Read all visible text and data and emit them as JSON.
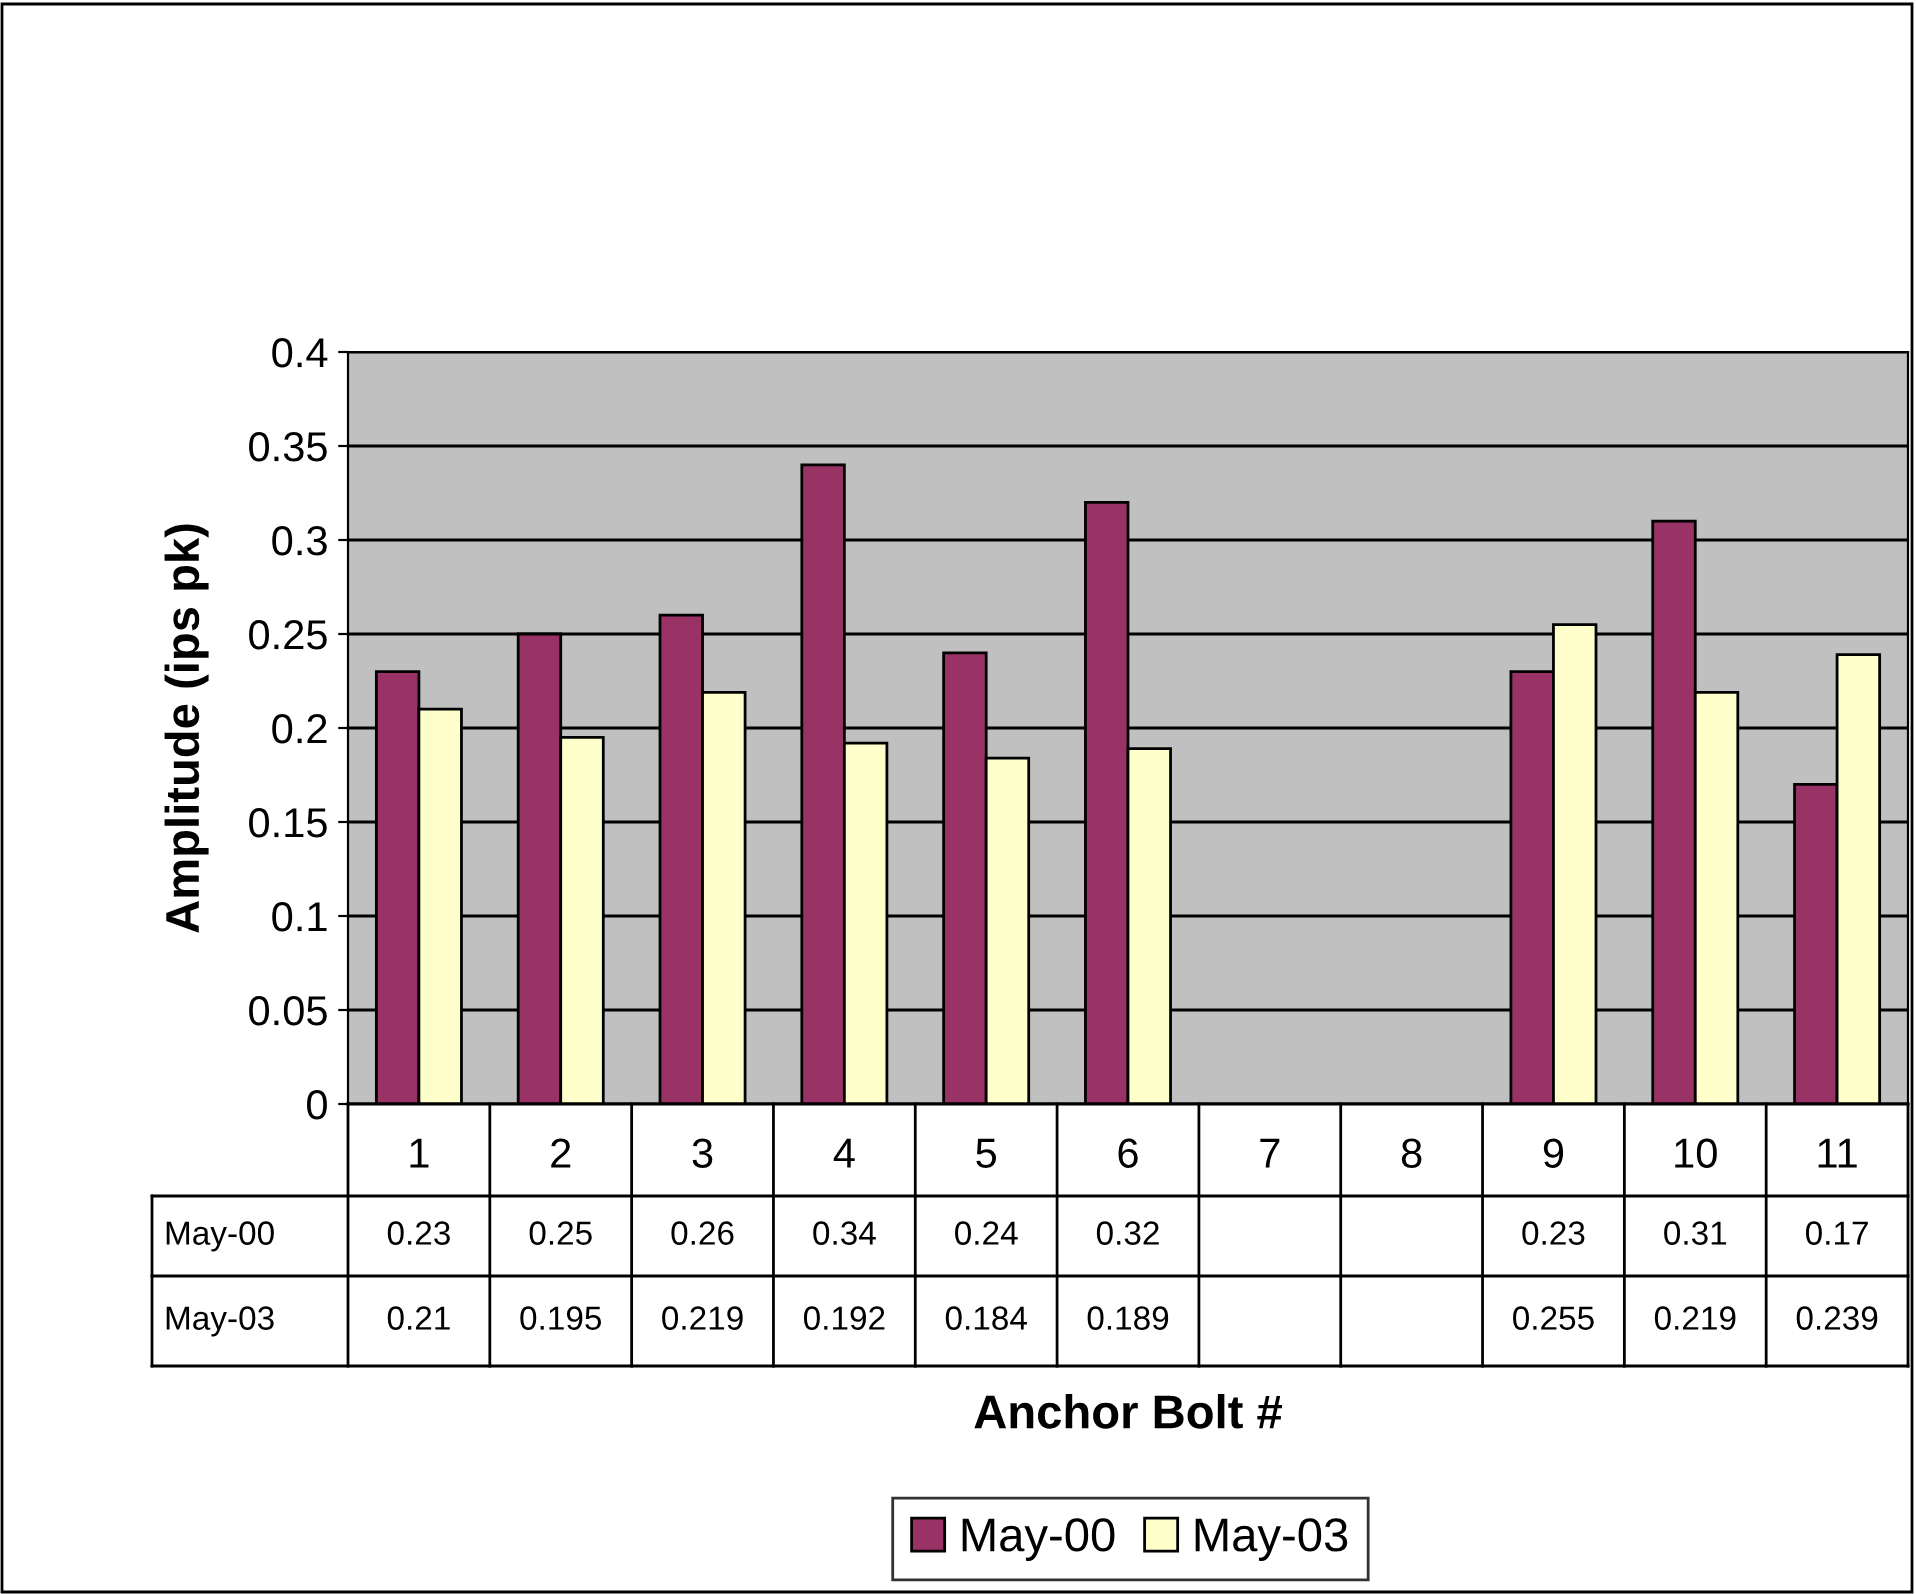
{
  "chart_data": {
    "type": "bar",
    "xlabel": "Anchor Bolt #",
    "ylabel": "Amplitude (ips pk)",
    "categories": [
      "1",
      "2",
      "3",
      "4",
      "5",
      "6",
      "7",
      "8",
      "9",
      "10",
      "11"
    ],
    "series": [
      {
        "name": "May-00",
        "color": "#993366",
        "values": [
          0.23,
          0.25,
          0.26,
          0.34,
          0.24,
          0.32,
          null,
          null,
          0.23,
          0.31,
          0.17
        ]
      },
      {
        "name": "May-03",
        "color": "#ffffcc",
        "values": [
          0.21,
          0.195,
          0.219,
          0.192,
          0.184,
          0.189,
          null,
          null,
          0.255,
          0.219,
          0.239
        ]
      }
    ],
    "ylim": [
      0,
      0.4
    ],
    "yticks": [
      {
        "value": 0,
        "label": "0"
      },
      0.05,
      0.1,
      0.15,
      0.2,
      0.25,
      0.3,
      0.35,
      0.4
    ],
    "grid": "y",
    "legend": "bottom",
    "data_labels": true
  }
}
